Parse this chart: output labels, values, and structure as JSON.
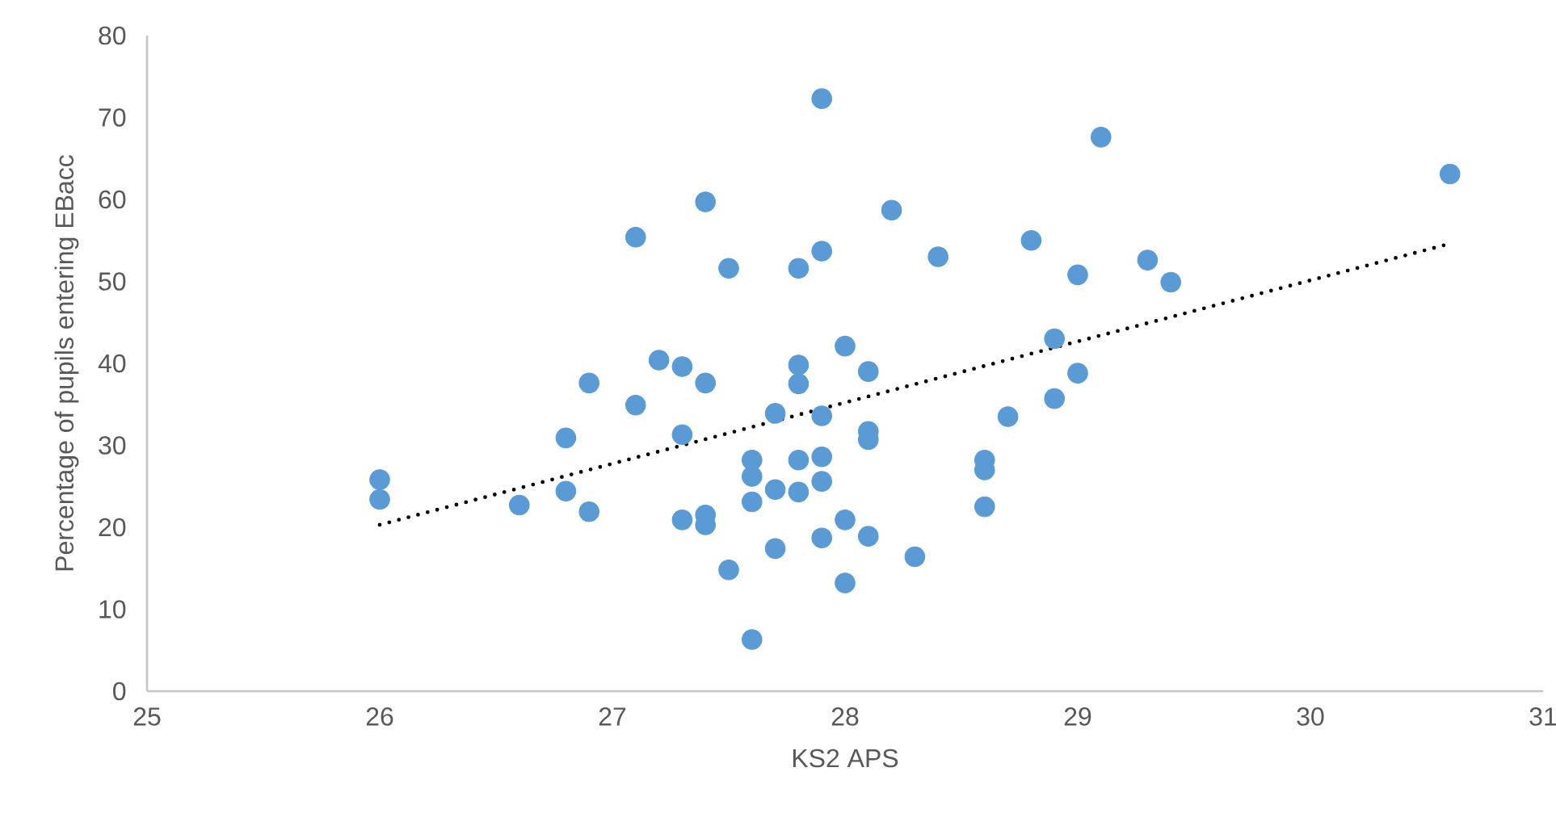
{
  "chart_data": {
    "type": "scatter",
    "xlabel": "KS2 APS",
    "ylabel": "Percentage of pupils entering EBacc",
    "xlim": [
      25,
      31
    ],
    "ylim": [
      0,
      80
    ],
    "xticks": [
      25,
      26,
      27,
      28,
      29,
      30,
      31
    ],
    "yticks": [
      0,
      10,
      20,
      30,
      40,
      50,
      60,
      70,
      80
    ],
    "grid": false,
    "series": [
      {
        "color": "#5b9bd5",
        "marker": "circle",
        "x": [
          26.0,
          26.0,
          26.6,
          26.8,
          26.8,
          26.9,
          26.9,
          27.1,
          27.1,
          27.2,
          27.3,
          27.3,
          27.3,
          27.4,
          27.4,
          27.4,
          27.4,
          27.5,
          27.5,
          27.6,
          27.6,
          27.6,
          27.6,
          27.7,
          27.7,
          27.7,
          27.8,
          27.8,
          27.8,
          27.8,
          27.8,
          27.9,
          27.9,
          27.9,
          27.9,
          27.9,
          27.9,
          28.0,
          28.0,
          28.0,
          28.1,
          28.1,
          28.1,
          28.1,
          28.2,
          28.3,
          28.4,
          28.6,
          28.6,
          28.6,
          28.7,
          28.8,
          28.9,
          28.9,
          29.0,
          29.0,
          29.1,
          29.3,
          29.4,
          30.6
        ],
        "values": [
          25.8,
          23.4,
          22.7,
          30.9,
          24.4,
          37.6,
          21.9,
          55.4,
          34.9,
          40.4,
          39.6,
          31.3,
          20.9,
          59.7,
          37.6,
          21.5,
          20.3,
          51.6,
          14.8,
          6.3,
          28.2,
          26.2,
          23.1,
          33.9,
          24.6,
          17.4,
          51.6,
          39.8,
          37.5,
          28.2,
          24.3,
          72.3,
          53.7,
          33.6,
          28.6,
          25.6,
          18.7,
          42.1,
          20.9,
          13.2,
          39.0,
          31.7,
          30.7,
          18.9,
          58.7,
          16.4,
          53.0,
          28.2,
          27.0,
          22.5,
          33.5,
          55.0,
          43.0,
          35.7,
          50.8,
          38.8,
          67.6,
          52.6,
          49.9,
          63.1
        ]
      },
      {
        "type": "line",
        "color": "#000000",
        "line_style": "dotted",
        "marker": "none",
        "x": [
          26.0,
          30.6
        ],
        "values": [
          20.3,
          54.6
        ]
      }
    ]
  }
}
